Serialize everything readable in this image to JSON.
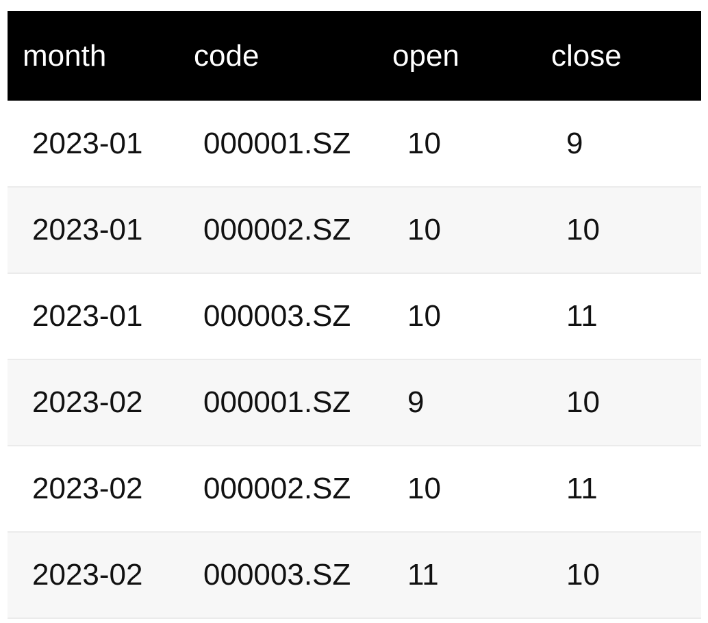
{
  "table": {
    "headers": [
      "month",
      "code",
      "open",
      "close"
    ],
    "rows": [
      [
        "2023-01",
        "000001.SZ",
        "10",
        "9"
      ],
      [
        "2023-01",
        "000002.SZ",
        "10",
        "10"
      ],
      [
        "2023-01",
        "000003.SZ",
        "10",
        "11"
      ],
      [
        "2023-02",
        "000001.SZ",
        "9",
        "10"
      ],
      [
        "2023-02",
        "000002.SZ",
        "10",
        "11"
      ],
      [
        "2023-02",
        "000003.SZ",
        "11",
        "10"
      ]
    ]
  },
  "colors": {
    "header_bg": "#000000",
    "header_text": "#ffffff",
    "row_alt_bg": "#f7f7f7",
    "row_border": "#ebebeb"
  }
}
